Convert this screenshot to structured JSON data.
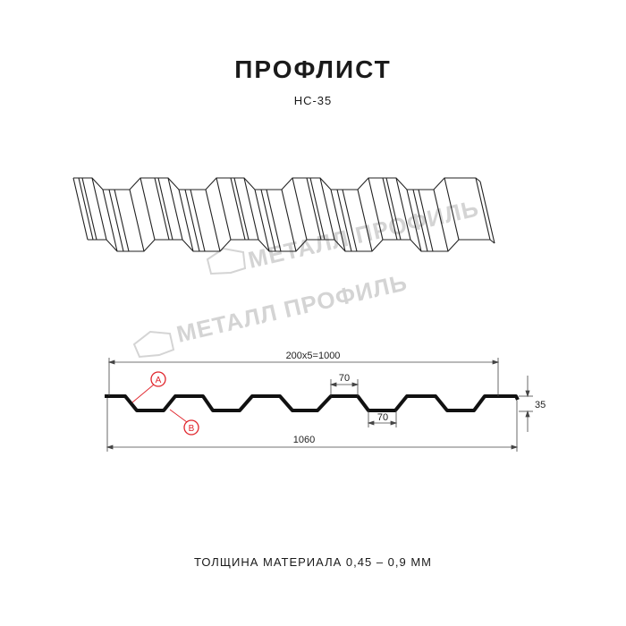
{
  "title": "ПРОФЛИСТ",
  "subtitle": "НС-35",
  "watermark": "МЕТАЛЛ ПРОФИЛЬ",
  "dimensions": {
    "pitch_total": "200x5=1000",
    "top_width": "70",
    "bottom_width": "70",
    "height": "35",
    "total_width": "1060"
  },
  "markers": {
    "a": "A",
    "b": "B"
  },
  "marker_color": "#e0242b",
  "footer": "ТОЛЩИНА МАТЕРИАЛА 0,45 – 0,9 ММ"
}
